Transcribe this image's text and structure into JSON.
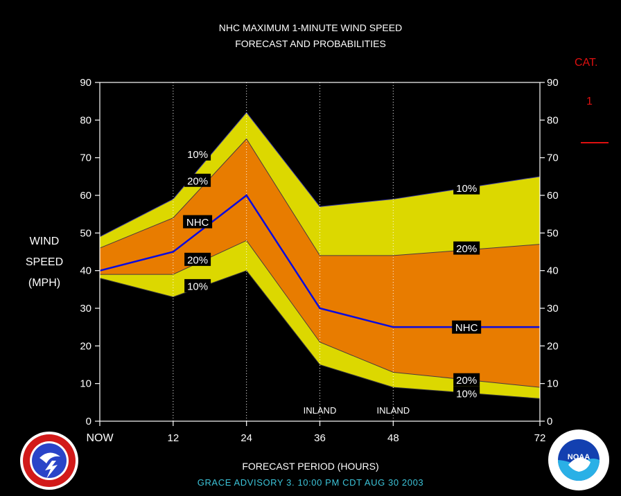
{
  "title_line1": "NHC MAXIMUM 1-MINUTE WIND SPEED",
  "title_line2": "FORECAST AND PROBABILITIES",
  "ylabel_lines": [
    "WIND",
    "SPEED",
    "(MPH)"
  ],
  "xlabel": "FORECAST PERIOD (HOURS)",
  "advisory": "GRACE   ADVISORY  3.  10:00  PM  CDT  AUG  30  2003",
  "category": {
    "label": "CAT.",
    "value": "1",
    "color": "#e01010"
  },
  "colors": {
    "band_10": "#dcd800",
    "band_20": "#e87c00",
    "nhc_line": "#0a0ae0",
    "axis": "#ffffff",
    "advisory_text": "#3cc3d8"
  },
  "logos": {
    "left": "nws-logo",
    "right": "noaa-logo"
  },
  "chart_data": {
    "type": "area",
    "xlim": [
      0,
      72
    ],
    "ylim": [
      0,
      90
    ],
    "yticks": [
      0,
      10,
      20,
      30,
      40,
      50,
      60,
      70,
      80,
      90
    ],
    "xticks": [
      {
        "x": 0,
        "label": "NOW"
      },
      {
        "x": 12,
        "label": "12"
      },
      {
        "x": 24,
        "label": "24"
      },
      {
        "x": 36,
        "label": "36"
      },
      {
        "x": 48,
        "label": "48"
      },
      {
        "x": 72,
        "label": "72"
      }
    ],
    "x": [
      0,
      12,
      24,
      36,
      48,
      72
    ],
    "series": [
      {
        "name": "10%",
        "values": [
          49,
          59,
          82,
          57,
          59,
          65
        ]
      },
      {
        "name": "20%",
        "values": [
          46,
          54,
          75,
          44,
          44,
          47
        ]
      },
      {
        "name": "NHC",
        "values": [
          40,
          45,
          60,
          30,
          25,
          25
        ]
      },
      {
        "name": "20%",
        "values": [
          39,
          39,
          48,
          21,
          13,
          9
        ]
      },
      {
        "name": "10%",
        "values": [
          38,
          33,
          40,
          15,
          9,
          6
        ]
      }
    ],
    "annotations": [
      {
        "text": "10%",
        "x": 16,
        "y": 71
      },
      {
        "text": "20%",
        "x": 16,
        "y": 64
      },
      {
        "text": "NHC",
        "x": 16,
        "y": 53
      },
      {
        "text": "20%",
        "x": 16,
        "y": 43
      },
      {
        "text": "10%",
        "x": 16,
        "y": 36
      },
      {
        "text": "10%",
        "x": 60,
        "y": 62
      },
      {
        "text": "20%",
        "x": 60,
        "y": 46
      },
      {
        "text": "NHC",
        "x": 60,
        "y": 25
      },
      {
        "text": "20%",
        "x": 60,
        "y": 11
      },
      {
        "text": "10%",
        "x": 60,
        "y": 7.5
      }
    ],
    "inland_labels": [
      {
        "text": "INLAND",
        "x": 36
      },
      {
        "text": "INLAND",
        "x": 48
      }
    ],
    "grid": "vertical dotted at 12, 24, 36, 48"
  }
}
